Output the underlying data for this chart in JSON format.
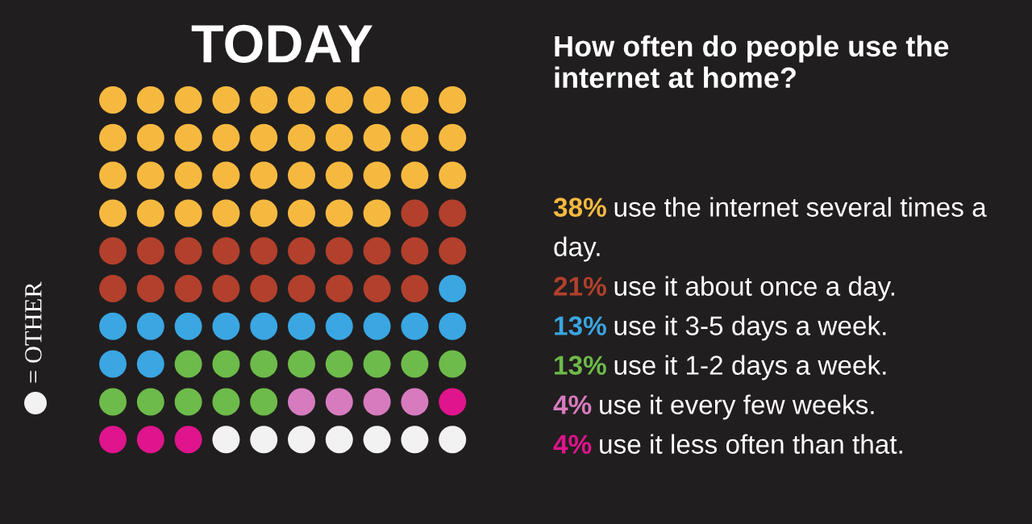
{
  "chart_data": {
    "type": "other",
    "title": "TODAY",
    "subtitle": "How often do people use the internet at home?",
    "categories": [
      "use the internet several times a day.",
      "use it about once a day.",
      "use it 3-5 days a week.",
      "use it 1-2 days a week.",
      "use it every few weeks.",
      "use it less often than that.",
      "= OTHER"
    ],
    "values": [
      38,
      21,
      13,
      13,
      4,
      4,
      null
    ],
    "value_labels": [
      "38%",
      "21%",
      "13%",
      "13%",
      "4%",
      "4%",
      null
    ],
    "colors": [
      "#f6b940",
      "#b2402c",
      "#3aa6e2",
      "#6dbb4a",
      "#d77bbf",
      "#e0148c",
      "#f2f2f2"
    ]
  }
}
